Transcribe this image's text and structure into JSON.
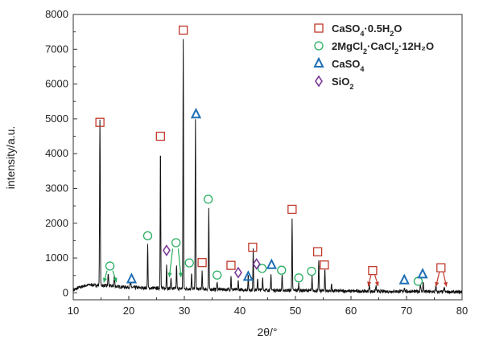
{
  "chart_data": {
    "type": "line",
    "xlabel": "2θ/°",
    "ylabel": "intensity/a.u.",
    "xlim": [
      10,
      80
    ],
    "ylim": [
      -200,
      8000
    ],
    "xticks": [
      10,
      20,
      30,
      40,
      50,
      60,
      70,
      80
    ],
    "yticks": [
      0,
      1000,
      2000,
      3000,
      4000,
      5000,
      6000,
      7000,
      8000
    ],
    "grid": false,
    "legend_position": "top-right",
    "colors": {
      "trace": "#111111",
      "CaSO4_0.5H2O": "#c0392b",
      "2MgCl2_CaCl2_12H2O": "#27ae60",
      "CaSO4": "#1f6fb5",
      "SiO2": "#7d3c98"
    },
    "legend": [
      {
        "key": "hemihydrate",
        "marker": "square",
        "color": "#c0392b",
        "pre": "CaSO",
        "sub1": "4",
        "mid": "·0.5H",
        "sub2": "2",
        "post": "O"
      },
      {
        "key": "double_salt",
        "marker": "circle",
        "color": "#27ae60",
        "pre": "2MgCl",
        "sub1": "2",
        "mid": "·CaCl",
        "sub2": "2",
        "post": "·12H₂O"
      },
      {
        "key": "anhydrite",
        "marker": "triangle",
        "color": "#1f6fb5",
        "pre": "CaSO",
        "sub1": "4",
        "mid": "",
        "sub2": "",
        "post": ""
      },
      {
        "key": "quartz",
        "marker": "diamond",
        "color": "#7d3c98",
        "pre": "SiO",
        "sub1": "2",
        "mid": "",
        "sub2": "",
        "post": ""
      }
    ],
    "baseline": [
      [
        10,
        80
      ],
      [
        11,
        150
      ],
      [
        12,
        200
      ],
      [
        13,
        230
      ],
      [
        14,
        220
      ],
      [
        15.5,
        210
      ],
      [
        17,
        190
      ],
      [
        19,
        170
      ],
      [
        21,
        150
      ],
      [
        23,
        140
      ],
      [
        25,
        130
      ],
      [
        28,
        120
      ],
      [
        32,
        110
      ],
      [
        36,
        100
      ],
      [
        40,
        90
      ],
      [
        45,
        80
      ],
      [
        50,
        70
      ],
      [
        55,
        60
      ],
      [
        60,
        50
      ],
      [
        65,
        40
      ],
      [
        70,
        40
      ],
      [
        75,
        30
      ],
      [
        80,
        20
      ]
    ],
    "peaks": [
      {
        "x": 14.8,
        "y": 4750,
        "w": 0.14
      },
      {
        "x": 16.3,
        "y": 350,
        "w": 0.15
      },
      {
        "x": 17.4,
        "y": 300,
        "w": 0.15
      },
      {
        "x": 20.3,
        "y": 120,
        "w": 0.2
      },
      {
        "x": 23.4,
        "y": 1250,
        "w": 0.12
      },
      {
        "x": 25.7,
        "y": 4150,
        "w": 0.12
      },
      {
        "x": 26.8,
        "y": 700,
        "w": 0.12
      },
      {
        "x": 27.6,
        "y": 350,
        "w": 0.12
      },
      {
        "x": 28.6,
        "y": 700,
        "w": 0.12
      },
      {
        "x": 29.8,
        "y": 7200,
        "w": 0.12
      },
      {
        "x": 31.3,
        "y": 450,
        "w": 0.12
      },
      {
        "x": 32.0,
        "y": 4850,
        "w": 0.12
      },
      {
        "x": 33.2,
        "y": 500,
        "w": 0.12
      },
      {
        "x": 34.4,
        "y": 2300,
        "w": 0.12
      },
      {
        "x": 35.9,
        "y": 250,
        "w": 0.12
      },
      {
        "x": 38.4,
        "y": 400,
        "w": 0.12
      },
      {
        "x": 39.7,
        "y": 250,
        "w": 0.12
      },
      {
        "x": 41.5,
        "y": 400,
        "w": 0.12
      },
      {
        "x": 42.4,
        "y": 1150,
        "w": 0.12
      },
      {
        "x": 43.2,
        "y": 350,
        "w": 0.12
      },
      {
        "x": 44.1,
        "y": 380,
        "w": 0.12
      },
      {
        "x": 45.6,
        "y": 450,
        "w": 0.12
      },
      {
        "x": 47.6,
        "y": 450,
        "w": 0.12
      },
      {
        "x": 49.4,
        "y": 2100,
        "w": 0.12
      },
      {
        "x": 50.6,
        "y": 200,
        "w": 0.12
      },
      {
        "x": 53.0,
        "y": 400,
        "w": 0.12
      },
      {
        "x": 54.2,
        "y": 900,
        "w": 0.12
      },
      {
        "x": 55.3,
        "y": 650,
        "w": 0.12
      },
      {
        "x": 56.5,
        "y": 200,
        "w": 0.12
      },
      {
        "x": 63.3,
        "y": 180,
        "w": 0.15
      },
      {
        "x": 64.5,
        "y": 150,
        "w": 0.15
      },
      {
        "x": 69.6,
        "y": 120,
        "w": 0.15
      },
      {
        "x": 72.5,
        "y": 220,
        "w": 0.15
      },
      {
        "x": 73.0,
        "y": 260,
        "w": 0.15
      },
      {
        "x": 75.3,
        "y": 180,
        "w": 0.15
      },
      {
        "x": 76.8,
        "y": 130,
        "w": 0.15
      }
    ],
    "markers": [
      {
        "phase": "hemihydrate",
        "shape": "square",
        "x": 14.8,
        "y": 4900
      },
      {
        "phase": "hemihydrate",
        "shape": "square",
        "x": 25.7,
        "y": 4500
      },
      {
        "phase": "hemihydrate",
        "shape": "square",
        "x": 29.8,
        "y": 7550
      },
      {
        "phase": "hemihydrate",
        "shape": "square",
        "x": 33.2,
        "y": 870
      },
      {
        "phase": "hemihydrate",
        "shape": "square",
        "x": 38.4,
        "y": 790
      },
      {
        "phase": "hemihydrate",
        "shape": "square",
        "x": 42.3,
        "y": 1310
      },
      {
        "phase": "hemihydrate",
        "shape": "square",
        "x": 49.4,
        "y": 2400
      },
      {
        "phase": "hemihydrate",
        "shape": "square",
        "x": 54.0,
        "y": 1180
      },
      {
        "phase": "hemihydrate",
        "shape": "square",
        "x": 55.2,
        "y": 800
      },
      {
        "phase": "hemihydrate",
        "shape": "square",
        "x": 63.9,
        "y": 640
      },
      {
        "phase": "hemihydrate",
        "shape": "square",
        "x": 76.2,
        "y": 720
      },
      {
        "phase": "double_salt",
        "shape": "circle",
        "x": 16.6,
        "y": 770
      },
      {
        "phase": "double_salt",
        "shape": "circle",
        "x": 23.4,
        "y": 1640
      },
      {
        "phase": "double_salt",
        "shape": "circle",
        "x": 28.5,
        "y": 1440
      },
      {
        "phase": "double_salt",
        "shape": "circle",
        "x": 30.9,
        "y": 860
      },
      {
        "phase": "double_salt",
        "shape": "circle",
        "x": 34.3,
        "y": 2690
      },
      {
        "phase": "double_salt",
        "shape": "circle",
        "x": 35.9,
        "y": 510
      },
      {
        "phase": "double_salt",
        "shape": "circle",
        "x": 44.0,
        "y": 700
      },
      {
        "phase": "double_salt",
        "shape": "circle",
        "x": 47.5,
        "y": 650
      },
      {
        "phase": "double_salt",
        "shape": "circle",
        "x": 50.6,
        "y": 430
      },
      {
        "phase": "double_salt",
        "shape": "circle",
        "x": 52.9,
        "y": 620
      },
      {
        "phase": "double_salt",
        "shape": "circle",
        "x": 72.1,
        "y": 330
      },
      {
        "phase": "anhydrite",
        "shape": "triangle",
        "x": 20.5,
        "y": 390
      },
      {
        "phase": "anhydrite",
        "shape": "triangle",
        "x": 32.1,
        "y": 5130
      },
      {
        "phase": "anhydrite",
        "shape": "triangle",
        "x": 41.5,
        "y": 460
      },
      {
        "phase": "anhydrite",
        "shape": "triangle",
        "x": 45.7,
        "y": 800
      },
      {
        "phase": "anhydrite",
        "shape": "triangle",
        "x": 69.6,
        "y": 360
      },
      {
        "phase": "anhydrite",
        "shape": "triangle",
        "x": 72.9,
        "y": 530
      },
      {
        "phase": "quartz",
        "shape": "diamond",
        "x": 26.8,
        "y": 1220
      },
      {
        "phase": "quartz",
        "shape": "diamond",
        "x": 39.7,
        "y": 580
      },
      {
        "phase": "quartz",
        "shape": "diamond",
        "x": 43.0,
        "y": 830
      }
    ],
    "arrows": [
      {
        "color": "#27ae60",
        "from": [
          16.1,
          640
        ],
        "to": [
          15.5,
          300
        ]
      },
      {
        "color": "#27ae60",
        "from": [
          17.1,
          640
        ],
        "to": [
          17.8,
          300
        ]
      },
      {
        "color": "#27ae60",
        "from": [
          27.9,
          1270
        ],
        "to": [
          27.3,
          450
        ]
      },
      {
        "color": "#27ae60",
        "from": [
          28.9,
          1270
        ],
        "to": [
          29.4,
          450
        ]
      },
      {
        "color": "#c0392b",
        "from": [
          63.6,
          510
        ],
        "to": [
          63.1,
          190
        ]
      },
      {
        "color": "#c0392b",
        "from": [
          64.3,
          510
        ],
        "to": [
          64.9,
          190
        ]
      },
      {
        "color": "#c0392b",
        "from": [
          75.9,
          590
        ],
        "to": [
          75.3,
          180
        ]
      },
      {
        "color": "#c0392b",
        "from": [
          76.6,
          590
        ],
        "to": [
          77.2,
          180
        ]
      }
    ]
  }
}
